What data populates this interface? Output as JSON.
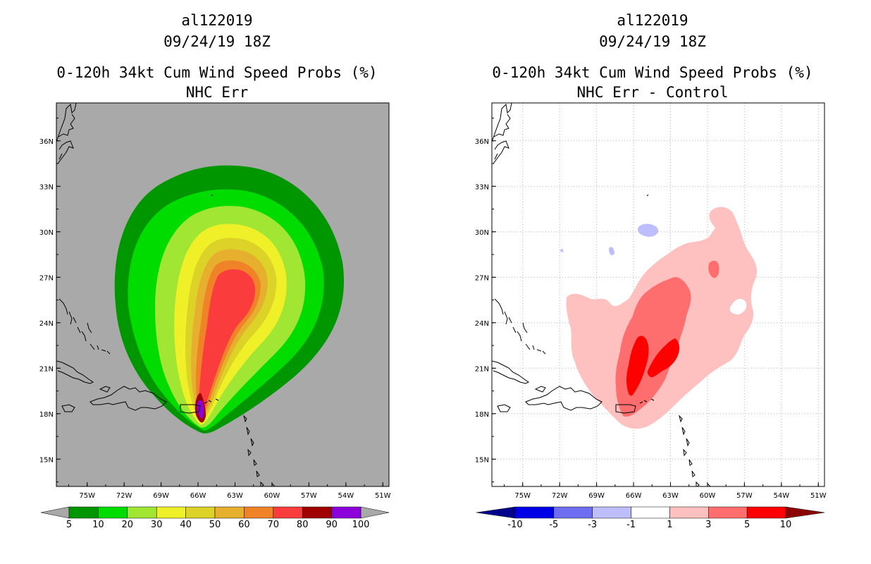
{
  "left_panel": {
    "title_lines": [
      "al122019",
      "09/24/19 18Z",
      "0-120h 34kt Cum Wind Speed Probs (%)",
      "NHC Err"
    ],
    "colorbar": {
      "labels": [
        "5",
        "10",
        "20",
        "30",
        "40",
        "50",
        "60",
        "70",
        "80",
        "90",
        "100"
      ],
      "colors": [
        "#009600",
        "#00dc00",
        "#a0e632",
        "#f0f028",
        "#dcd228",
        "#e6af2d",
        "#f08228",
        "#fa3c3c",
        "#a00000",
        "#8c00dc"
      ],
      "end_color": "#a9a9a9"
    },
    "background": "#a9a9a9"
  },
  "right_panel": {
    "title_lines": [
      "al122019",
      "09/24/19 18Z",
      "0-120h 34kt Cum Wind Speed Probs (%)",
      "NHC Err - Control"
    ],
    "colorbar": {
      "labels": [
        "-10",
        "-5",
        "-3",
        "-1",
        "1",
        "3",
        "5",
        "10"
      ],
      "colors": [
        "#0000e6",
        "#6e6ef0",
        "#bebeff",
        "#ffffff",
        "#ffc0c0",
        "#ff6e6e",
        "#ff0000"
      ],
      "low_end_color": "#00008c",
      "high_end_color": "#8c0000"
    },
    "background": "#ffffff"
  },
  "axes": {
    "lon_labels": [
      "75W",
      "72W",
      "69W",
      "66W",
      "63W",
      "60W",
      "57W",
      "54W",
      "51W"
    ],
    "lon_values": [
      -75,
      -72,
      -69,
      -66,
      -63,
      -60,
      -57,
      -54,
      -51
    ],
    "lat_labels": [
      "36N",
      "33N",
      "30N",
      "27N",
      "24N",
      "21N",
      "18N",
      "15N"
    ],
    "lat_values": [
      36,
      33,
      30,
      27,
      24,
      21,
      18,
      15
    ],
    "lon_range": [
      -77.5,
      -50.5
    ],
    "lat_range": [
      13.2,
      38.5
    ]
  }
}
